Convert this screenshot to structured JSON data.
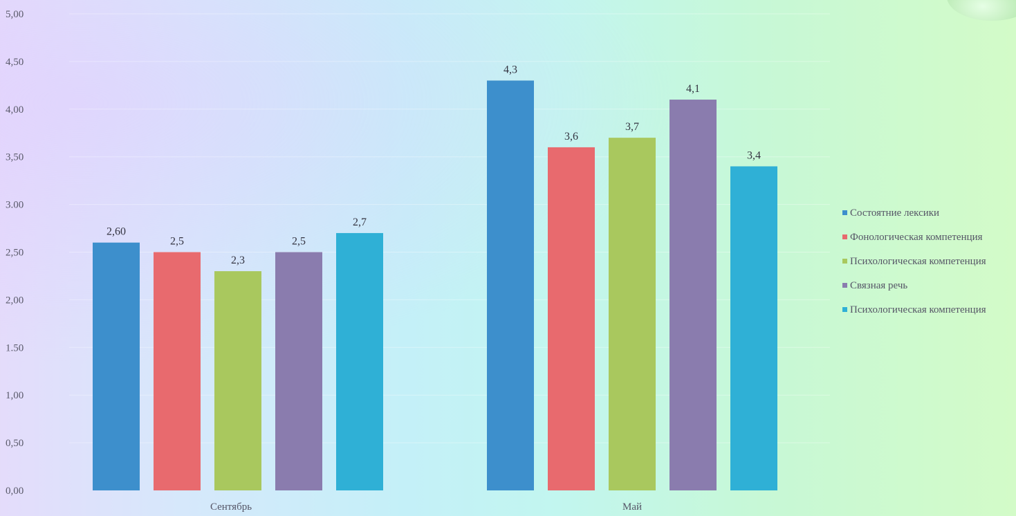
{
  "chart_data": {
    "type": "bar",
    "categories": [
      "Сентябрь",
      "Май"
    ],
    "yticks": [
      "0,00",
      "0,50",
      "1,00",
      "1.50",
      "2,00",
      "2,50",
      "3.00",
      "3,50",
      "4,00",
      "4,50",
      "5,00"
    ],
    "ylim": [
      0,
      5
    ],
    "grid": true,
    "legend_position": "right",
    "series": [
      {
        "name": "Состоятние лексики",
        "color": "#3d8fcc",
        "values": [
          2.6,
          4.3
        ],
        "labels": [
          "2,60",
          "4,3"
        ]
      },
      {
        "name": "Фонологическая компетенция",
        "color": "#e86a6e",
        "values": [
          2.5,
          3.6
        ],
        "labels": [
          "2,5",
          "3,6"
        ]
      },
      {
        "name": "Психологическая компетенция",
        "color": "#a9c85e",
        "values": [
          2.3,
          3.7
        ],
        "labels": [
          "2,3",
          "3,7"
        ]
      },
      {
        "name": "Связная речь",
        "color": "#8a7cae",
        "values": [
          2.5,
          4.1
        ],
        "labels": [
          "2,5",
          "4,1"
        ]
      },
      {
        "name": "Психологическая компетенция",
        "color": "#2fb0d6",
        "values": [
          2.7,
          3.4
        ],
        "labels": [
          "2,7",
          "3,4"
        ]
      }
    ]
  }
}
